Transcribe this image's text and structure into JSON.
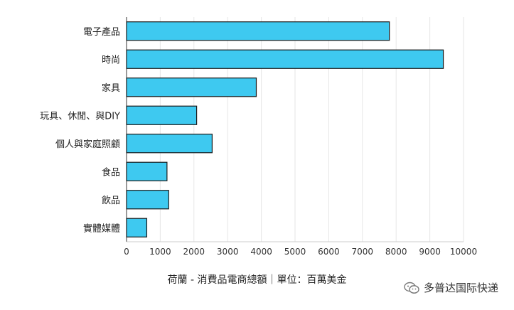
{
  "chart_data": {
    "type": "bar",
    "orientation": "horizontal",
    "categories": [
      "電子產品",
      "時尚",
      "家具",
      "玩具、休閒、與DIY",
      "個人與家庭照顧",
      "食品",
      "飲品",
      "實體媒體"
    ],
    "values": [
      7800,
      9400,
      3850,
      2080,
      2540,
      1200,
      1250,
      600
    ],
    "xlim": [
      0,
      10000
    ],
    "x_ticks": [
      "0",
      "1000",
      "2000",
      "3000",
      "4000",
      "5000",
      "6000",
      "7000",
      "8000",
      "9000",
      "10000"
    ],
    "grid": true,
    "legend": "none",
    "caption": "荷蘭 - 消費品電商總額｜單位：百萬美金",
    "colors": {
      "bar_fill": "#3ec9f0",
      "bar_stroke": "#1a1a1a",
      "grid": "#e6e6e6",
      "axis": "#333333"
    }
  },
  "watermark": {
    "text": "多普达国际快递",
    "icon": "wechat-icon"
  }
}
